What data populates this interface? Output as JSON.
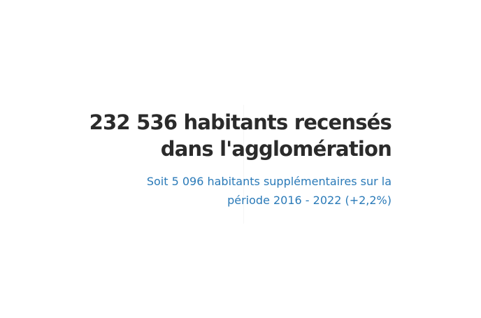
{
  "header": {
    "title": "232 536 habitants recensés dans l'agglomération",
    "subtitle": "Soit 5 096 habitants supplémentaires sur la période 2016 - 2022 (+2,2%)"
  }
}
